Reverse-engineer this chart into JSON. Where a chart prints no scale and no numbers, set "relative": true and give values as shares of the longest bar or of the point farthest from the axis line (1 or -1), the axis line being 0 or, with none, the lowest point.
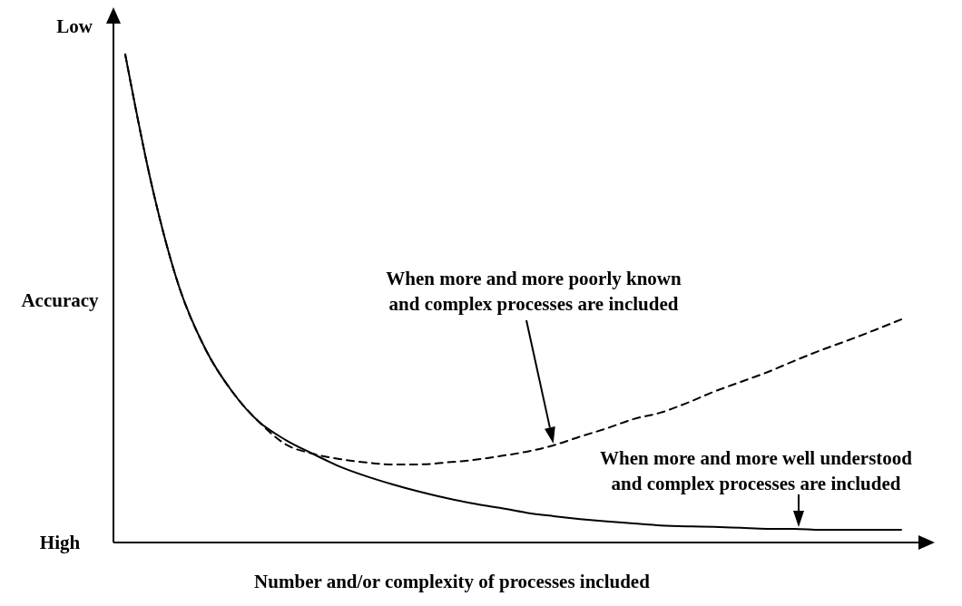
{
  "chart_data": {
    "type": "line",
    "relative": true,
    "ylabel": "Accuracy",
    "xlabel": "Number and/or complexity of processes included",
    "categories": [
      null,
      null,
      null,
      null,
      null,
      null,
      null,
      null,
      null,
      null,
      null,
      null,
      null,
      null,
      null,
      null,
      null,
      null,
      null,
      null,
      null,
      null,
      null,
      null,
      null,
      null,
      null,
      null,
      null,
      null
    ],
    "series": [
      {
        "color": "#000000",
        "line_style": "solid",
        "values": [
          1.0,
          0.73,
          0.526,
          0.396,
          0.309,
          0.247,
          0.21,
          0.182,
          0.156,
          0.136,
          0.119,
          0.104,
          0.091,
          0.08,
          0.071,
          0.061,
          0.054,
          0.048,
          0.043,
          0.039,
          0.035,
          0.033,
          0.032,
          0.03,
          0.028,
          0.028,
          0.026,
          0.026,
          0.026,
          0.026
        ]
      },
      {
        "color": "#000000",
        "line_style": "dashed",
        "values": [
          1.0,
          0.73,
          0.526,
          0.396,
          0.309,
          0.247,
          0.201,
          0.182,
          0.171,
          0.164,
          0.16,
          0.16,
          0.164,
          0.169,
          0.177,
          0.186,
          0.199,
          0.217,
          0.234,
          0.253,
          0.266,
          0.286,
          0.309,
          0.329,
          0.349,
          0.372,
          0.394,
          0.414,
          0.435,
          0.457
        ]
      }
    ],
    "annotations": [
      "Low",
      "High",
      "When more and more poorly known\nand complex processes are included",
      "When more and more well understood\nand complex processes are included"
    ]
  }
}
